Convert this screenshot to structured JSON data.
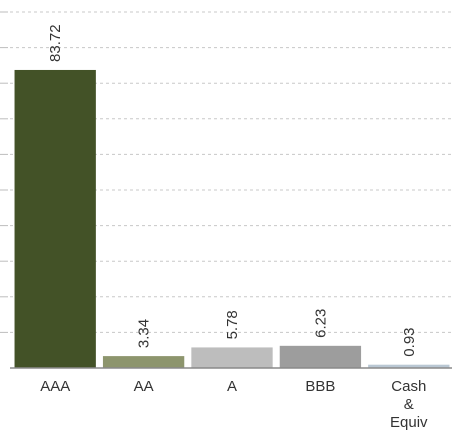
{
  "chart_data": {
    "type": "bar",
    "categories": [
      "AAA",
      "AA",
      "A",
      "BBB",
      "Cash & Equiv"
    ],
    "category_lines": [
      [
        "AAA"
      ],
      [
        "AA"
      ],
      [
        "A"
      ],
      [
        "BBB"
      ],
      [
        "Cash",
        "&",
        "Equiv"
      ]
    ],
    "values": [
      83.72,
      3.34,
      5.78,
      6.23,
      0.93
    ],
    "value_labels": [
      "83.72",
      "3.34",
      "5.78",
      "6.23",
      "0.93"
    ],
    "colors": [
      "#435227",
      "#8d956d",
      "#bdbdbd",
      "#9d9d9d",
      "#b9c7d3"
    ],
    "ylim": [
      0,
      100
    ],
    "grid": true,
    "legend": "none",
    "title": "",
    "xlabel": "",
    "ylabel": ""
  }
}
